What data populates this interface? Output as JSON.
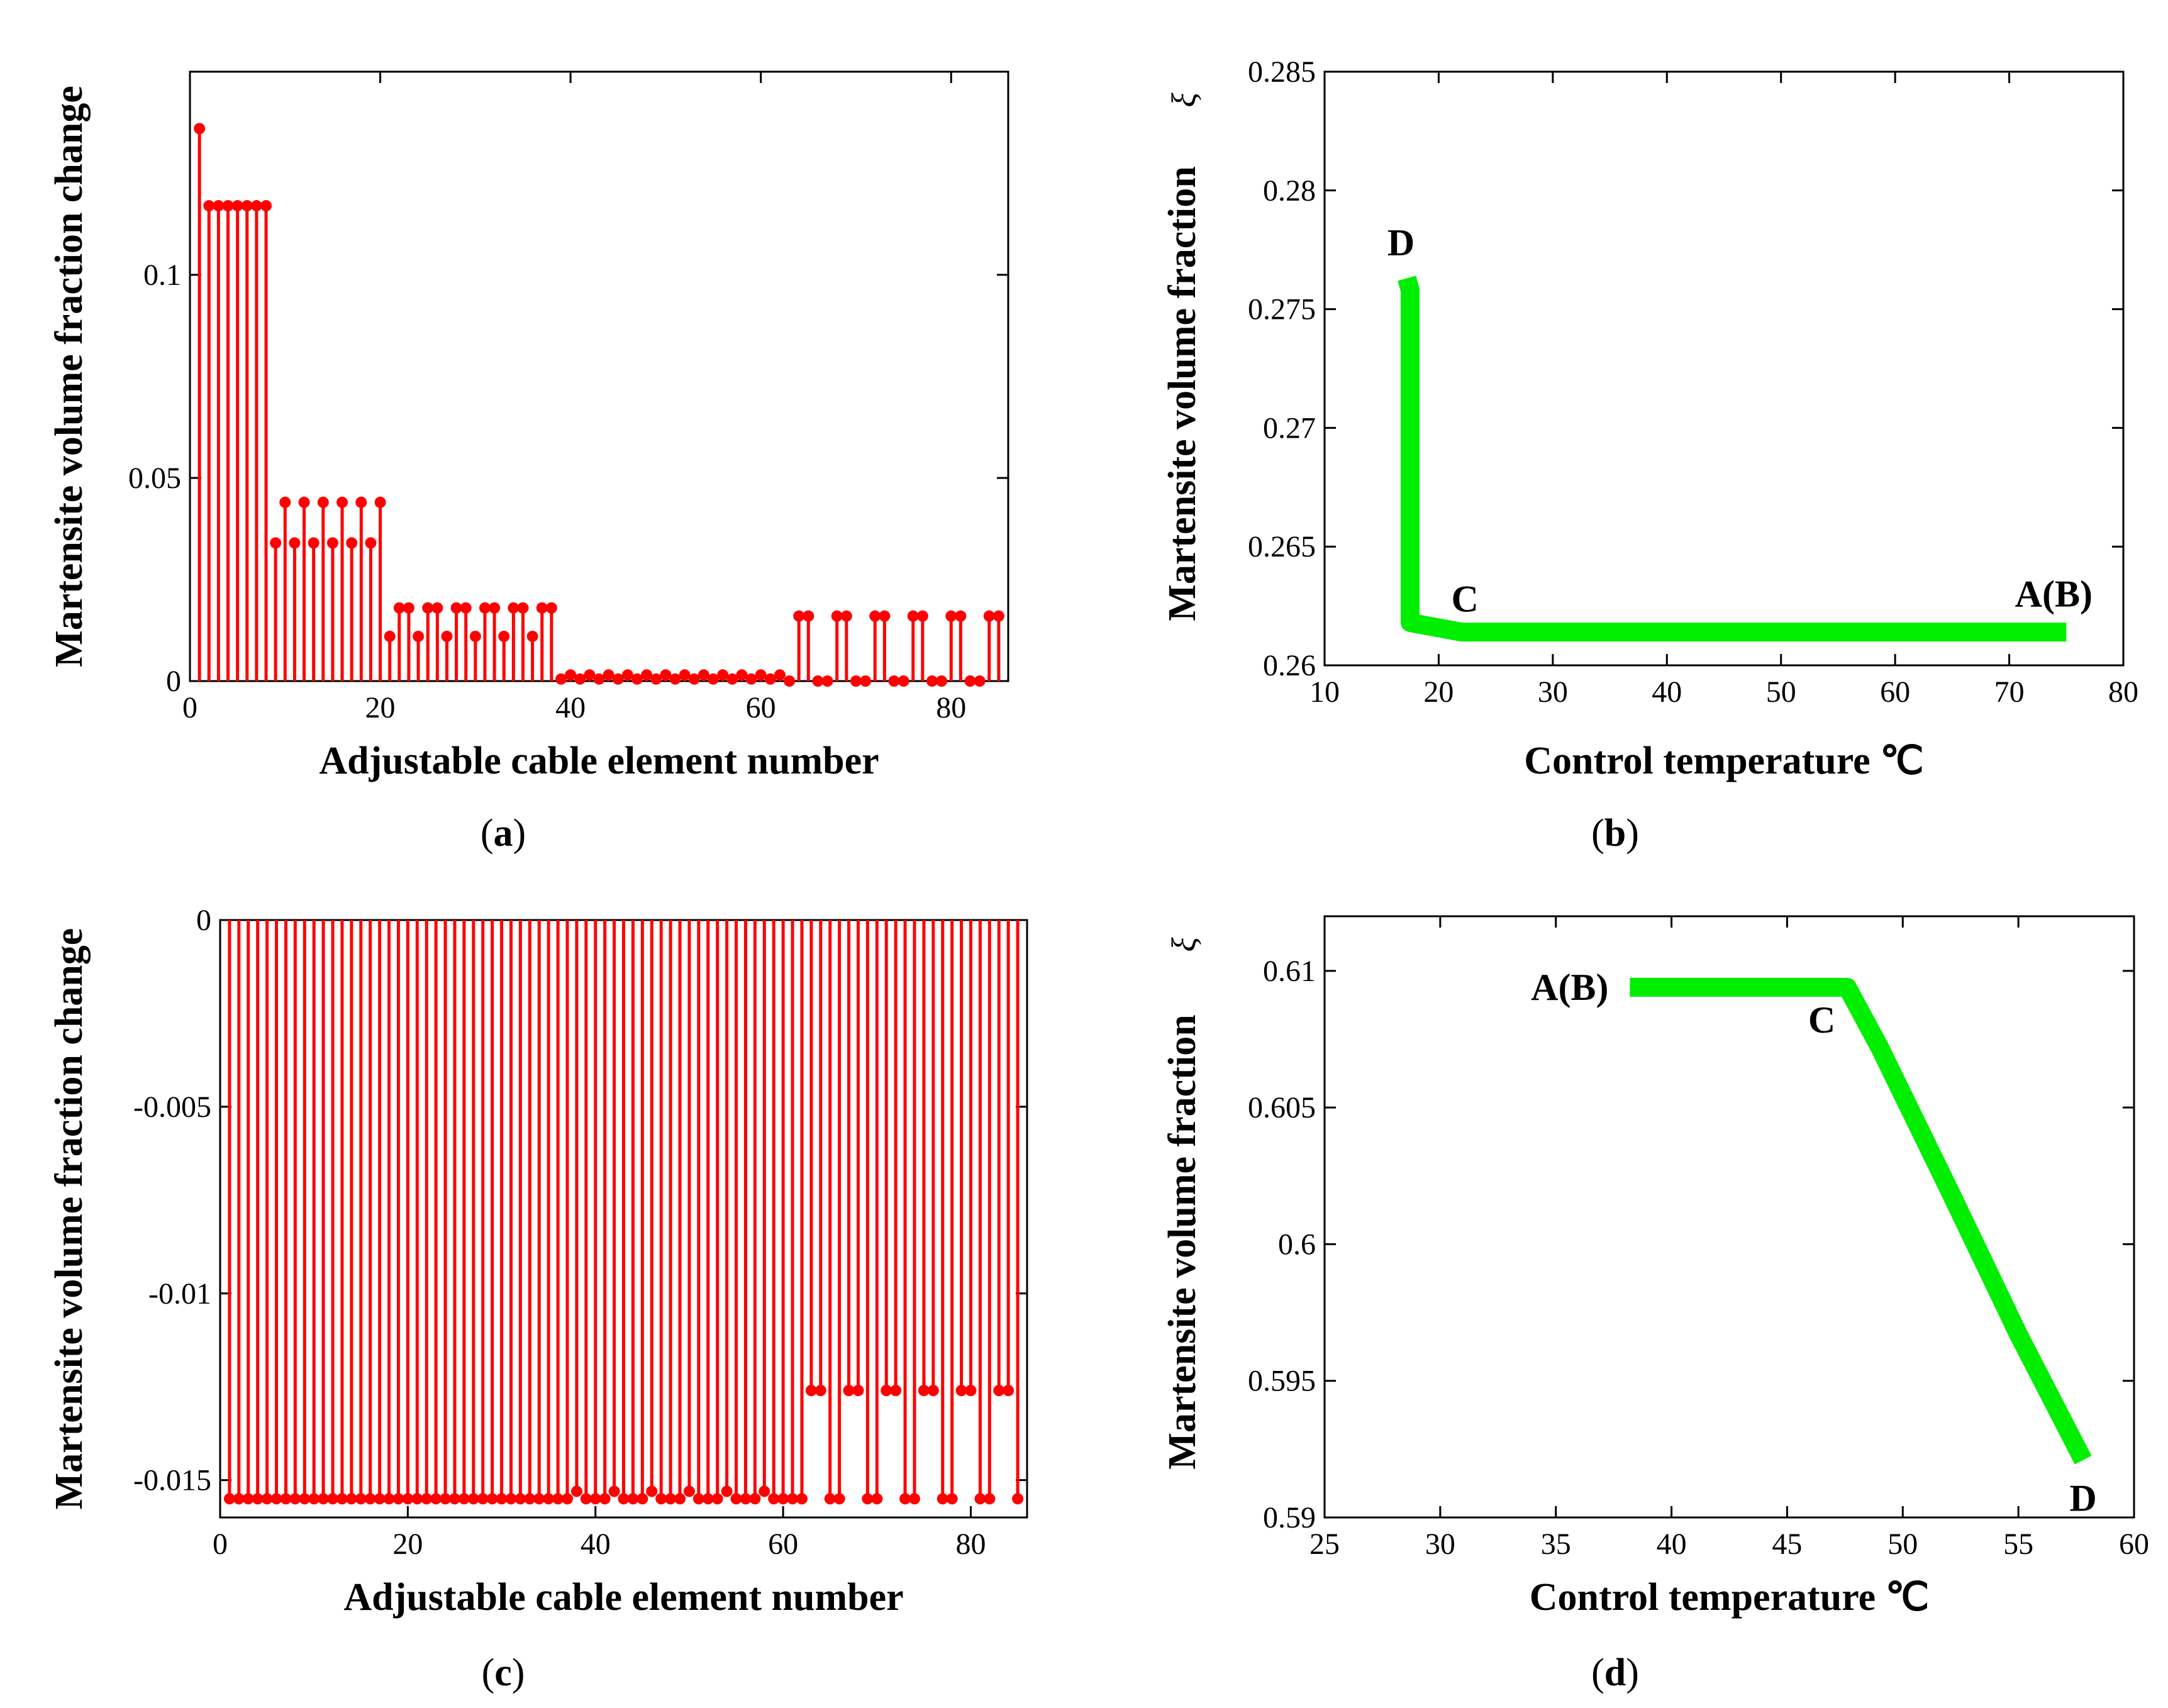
{
  "chart_data": [
    {
      "id": "a",
      "type": "stem",
      "caption": "(a)",
      "xlabel": "Adjustable cable element number",
      "ylabel": "Martensite volume fraction change",
      "xlim": [
        0,
        86
      ],
      "ylim": [
        0,
        0.15
      ],
      "xticks": [
        0,
        20,
        40,
        60,
        80
      ],
      "xtick_labels": [
        "0",
        "20",
        "40",
        "60",
        "80"
      ],
      "yticks": [
        0,
        0.05,
        0.1
      ],
      "ytick_labels": [
        "0",
        "0.05",
        "0.1"
      ],
      "color": "#ff0000",
      "x": [
        1,
        2,
        3,
        4,
        5,
        6,
        7,
        8,
        9,
        10,
        11,
        12,
        13,
        14,
        15,
        16,
        17,
        18,
        19,
        20,
        21,
        22,
        23,
        24,
        25,
        26,
        27,
        28,
        29,
        30,
        31,
        32,
        33,
        34,
        35,
        36,
        37,
        38,
        39,
        40,
        41,
        42,
        43,
        44,
        45,
        46,
        47,
        48,
        49,
        50,
        51,
        52,
        53,
        54,
        55,
        56,
        57,
        58,
        59,
        60,
        61,
        62,
        63,
        64,
        65,
        66,
        67,
        68,
        69,
        70,
        71,
        72,
        73,
        74,
        75,
        76,
        77,
        78,
        79,
        80,
        81,
        82,
        83,
        84,
        85
      ],
      "values": [
        0.136,
        0.117,
        0.117,
        0.117,
        0.117,
        0.117,
        0.117,
        0.117,
        0.034,
        0.044,
        0.034,
        0.044,
        0.034,
        0.044,
        0.034,
        0.044,
        0.034,
        0.044,
        0.034,
        0.044,
        0.011,
        0.018,
        0.018,
        0.011,
        0.018,
        0.018,
        0.011,
        0.018,
        0.018,
        0.011,
        0.018,
        0.018,
        0.011,
        0.018,
        0.018,
        0.011,
        0.018,
        0.018,
        0.0005,
        0.0015,
        0.0005,
        0.0015,
        0.0005,
        0.0015,
        0.0005,
        0.0015,
        0.0005,
        0.0015,
        0.0005,
        0.0015,
        0.0005,
        0.0015,
        0.0005,
        0.0015,
        0.0005,
        0.0015,
        0.0005,
        0.0015,
        0.0005,
        0.0015,
        0.0005,
        0.0015,
        0.0,
        0.016,
        0.016,
        0.0,
        0.0,
        0.016,
        0.016,
        0.0,
        0.0,
        0.016,
        0.016,
        0.0,
        0.0,
        0.016,
        0.016,
        0.0,
        0.0,
        0.016,
        0.016,
        0.0,
        0.0,
        0.016,
        0.016
      ]
    },
    {
      "id": "b",
      "type": "line",
      "caption": "(b)",
      "xlabel": "Control temperature ℃",
      "ylabel": "Martensite volume fraction",
      "ysymbol": "ξ",
      "xlim": [
        10,
        80
      ],
      "ylim": [
        0.26,
        0.285
      ],
      "xticks": [
        10,
        20,
        30,
        40,
        50,
        60,
        70,
        80
      ],
      "xtick_labels": [
        "10",
        "20",
        "30",
        "40",
        "50",
        "60",
        "70",
        "80"
      ],
      "yticks": [
        0.26,
        0.265,
        0.27,
        0.275,
        0.28,
        0.285
      ],
      "ytick_labels": [
        "0.26",
        "0.265",
        "0.27",
        "0.275",
        "0.28",
        "0.285"
      ],
      "color": "#00ee00",
      "x": [
        75,
        22,
        17.5,
        17.5,
        17.2
      ],
      "y": [
        0.2614,
        0.2614,
        0.2618,
        0.2758,
        0.2763
      ],
      "annotations": [
        {
          "text": "D",
          "x": 16.7,
          "y": 0.2778
        },
        {
          "text": "C",
          "x": 22.3,
          "y": 0.2628
        },
        {
          "text": "A(B)",
          "x": 73.9,
          "y": 0.263
        }
      ]
    },
    {
      "id": "c",
      "type": "stem",
      "caption": "(c)",
      "xlabel": "Adjustable cable element number",
      "ylabel": "Martensite volume fraction change",
      "xlim": [
        0,
        86
      ],
      "ylim": [
        -0.016,
        0
      ],
      "xticks": [
        0,
        20,
        40,
        60,
        80
      ],
      "xtick_labels": [
        "0",
        "20",
        "40",
        "60",
        "80"
      ],
      "yticks": [
        0,
        -0.005,
        -0.01,
        -0.015
      ],
      "ytick_labels": [
        "0",
        "-0.005",
        "-0.01",
        "-0.015"
      ],
      "color": "#ff0000",
      "x": [
        1,
        2,
        3,
        4,
        5,
        6,
        7,
        8,
        9,
        10,
        11,
        12,
        13,
        14,
        15,
        16,
        17,
        18,
        19,
        20,
        21,
        22,
        23,
        24,
        25,
        26,
        27,
        28,
        29,
        30,
        31,
        32,
        33,
        34,
        35,
        36,
        37,
        38,
        39,
        40,
        41,
        42,
        43,
        44,
        45,
        46,
        47,
        48,
        49,
        50,
        51,
        52,
        53,
        54,
        55,
        56,
        57,
        58,
        59,
        60,
        61,
        62,
        63,
        64,
        65,
        66,
        67,
        68,
        69,
        70,
        71,
        72,
        73,
        74,
        75,
        76,
        77,
        78,
        79,
        80,
        81,
        82,
        83,
        84,
        85
      ],
      "values": [
        -0.0155,
        -0.0155,
        -0.0155,
        -0.0155,
        -0.0155,
        -0.0155,
        -0.0155,
        -0.0155,
        -0.0155,
        -0.0155,
        -0.0155,
        -0.0155,
        -0.0155,
        -0.0155,
        -0.0155,
        -0.0155,
        -0.0155,
        -0.0155,
        -0.0155,
        -0.0155,
        -0.0155,
        -0.0155,
        -0.0155,
        -0.0155,
        -0.0155,
        -0.0155,
        -0.0155,
        -0.0155,
        -0.0155,
        -0.0155,
        -0.0155,
        -0.0155,
        -0.0155,
        -0.0155,
        -0.0155,
        -0.0155,
        -0.0155,
        -0.0153,
        -0.0155,
        -0.0155,
        -0.0155,
        -0.0153,
        -0.0155,
        -0.0155,
        -0.0155,
        -0.0153,
        -0.0155,
        -0.0155,
        -0.0155,
        -0.0153,
        -0.0155,
        -0.0155,
        -0.0155,
        -0.0153,
        -0.0155,
        -0.0155,
        -0.0155,
        -0.0153,
        -0.0155,
        -0.0155,
        -0.0155,
        -0.0155,
        -0.0126,
        -0.0126,
        -0.0155,
        -0.0155,
        -0.0126,
        -0.0126,
        -0.0155,
        -0.0155,
        -0.0126,
        -0.0126,
        -0.0155,
        -0.0155,
        -0.0126,
        -0.0126,
        -0.0155,
        -0.0155,
        -0.0126,
        -0.0126,
        -0.0155,
        -0.0155,
        -0.0126,
        -0.0126,
        -0.0155
      ]
    },
    {
      "id": "d",
      "type": "line",
      "caption": "(d)",
      "xlabel": "Control temperature ℃",
      "ylabel": "Martensite volume fraction",
      "ysymbol": "ξ",
      "xlim": [
        25,
        60
      ],
      "ylim": [
        0.59,
        0.612
      ],
      "xticks": [
        25,
        30,
        35,
        40,
        45,
        50,
        55,
        60
      ],
      "xtick_labels": [
        "25",
        "30",
        "35",
        "40",
        "45",
        "50",
        "55",
        "60"
      ],
      "yticks": [
        0.59,
        0.595,
        0.6,
        0.605,
        0.61
      ],
      "ytick_labels": [
        "0.59",
        "0.595",
        "0.6",
        "0.605",
        "0.61"
      ],
      "color": "#00ee00",
      "x": [
        38.2,
        47.6,
        49.0,
        52.0,
        55.0,
        57.8
      ],
      "y": [
        0.6094,
        0.6094,
        0.6072,
        0.602,
        0.5967,
        0.5921
      ],
      "annotations": [
        {
          "text": "A(B)",
          "x": 35.6,
          "y": 0.6094
        },
        {
          "text": "C",
          "x": 46.5,
          "y": 0.6082
        },
        {
          "text": "D",
          "x": 57.8,
          "y": 0.5907
        }
      ]
    }
  ]
}
